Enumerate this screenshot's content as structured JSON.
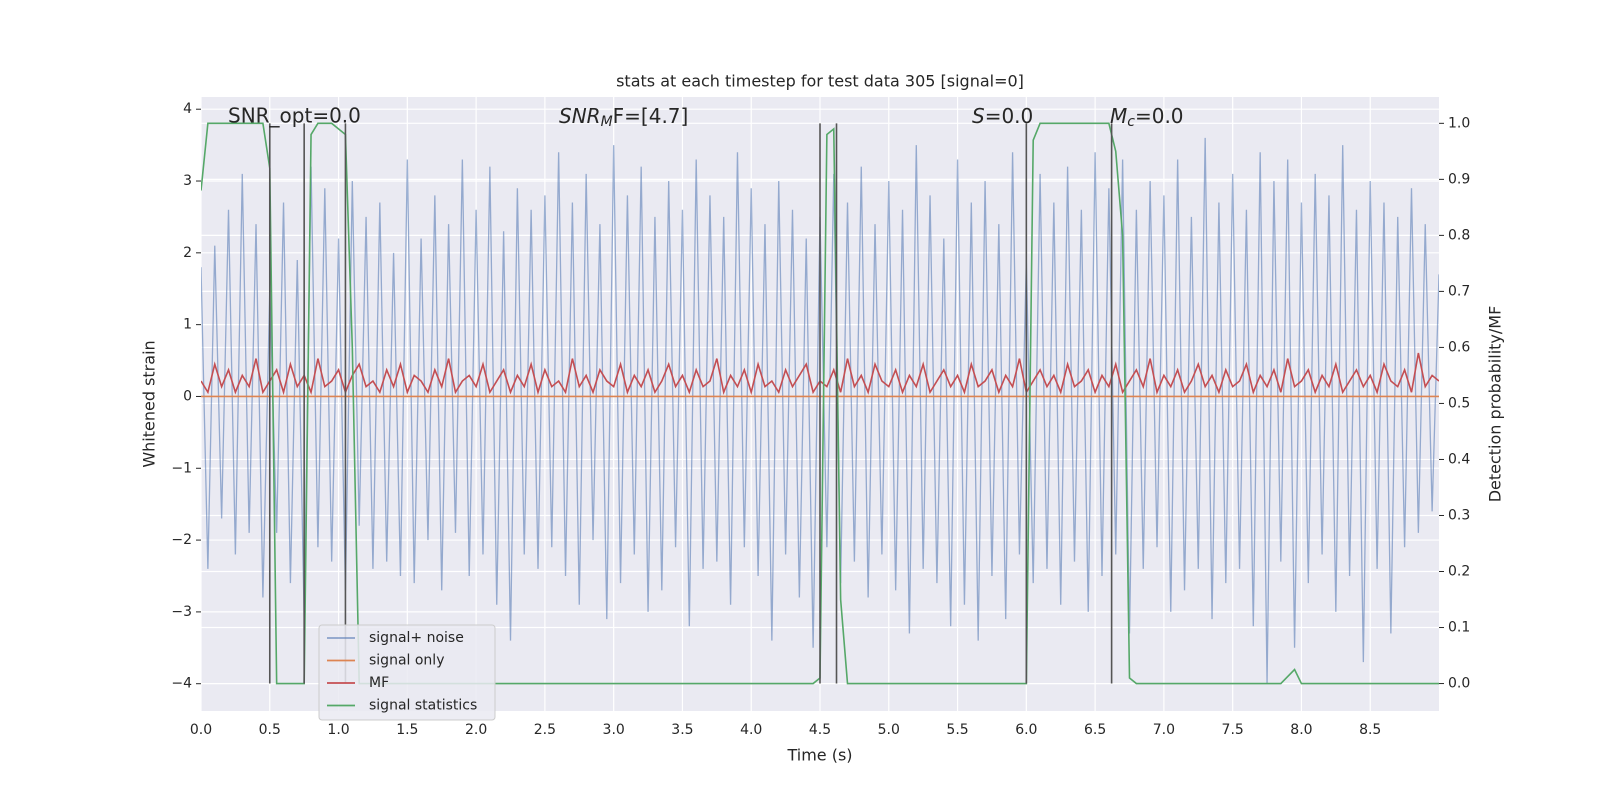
{
  "chart_data": {
    "type": "line",
    "title": "stats at each timestep for test data 305 [signal=0]",
    "xlabel": "Time (s)",
    "ylabel": "Whitened strain",
    "y2label": "Detection probability/MF",
    "annotations": [
      "SNR_opt=0.0",
      {
        "base": "SNR",
        "sub": "M",
        "tail": "F=[4.7]"
      },
      {
        "base": "S",
        "tail": "=0.0"
      },
      {
        "base": "M",
        "sub": "c",
        "tail": "=0.0"
      }
    ],
    "xlim": [
      0,
      9.0
    ],
    "ylim": [
      -4.38,
      4.17
    ],
    "y2lim": [
      -0.049,
      1.047
    ],
    "xticks": [
      {
        "value": 0,
        "label": "0.0"
      },
      0.5,
      {
        "value": 1,
        "label": "1.0"
      },
      1.5,
      {
        "value": 2,
        "label": "2.0"
      },
      2.5,
      {
        "value": 3,
        "label": "3.0"
      },
      3.5,
      {
        "value": 4,
        "label": "4.0"
      },
      4.5,
      {
        "value": 5,
        "label": "5.0"
      },
      5.5,
      {
        "value": 6,
        "label": "6.0"
      },
      6.5,
      {
        "value": 7,
        "label": "7.0"
      },
      7.5,
      {
        "value": 8,
        "label": "8.0"
      },
      8.5
    ],
    "yticks": [
      {
        "value": -4,
        "label": "−4"
      },
      {
        "value": -3,
        "label": "−3"
      },
      {
        "value": -2,
        "label": "−2"
      },
      {
        "value": -1,
        "label": "−1"
      },
      0,
      1,
      2,
      3,
      4
    ],
    "y2ticks": [
      {
        "value": 0,
        "label": "0.0"
      },
      0.1,
      0.2,
      0.3,
      0.4,
      0.5,
      0.6,
      0.7,
      0.8,
      0.9,
      {
        "value": 1,
        "label": "1.0"
      }
    ],
    "grid": true,
    "legend": "lower left",
    "x": [
      0,
      0.05,
      0.1,
      0.15,
      0.2,
      0.25,
      0.3,
      0.35,
      0.4,
      0.45,
      0.5,
      0.55,
      0.6,
      0.65,
      0.7,
      0.75,
      0.8,
      0.85,
      0.9,
      0.95,
      1,
      1.05,
      1.1,
      1.15,
      1.2,
      1.25,
      1.3,
      1.35,
      1.4,
      1.45,
      1.5,
      1.55,
      1.6,
      1.65,
      1.7,
      1.75,
      1.8,
      1.85,
      1.9,
      1.95,
      2,
      2.05,
      2.1,
      2.15,
      2.2,
      2.25,
      2.3,
      2.35,
      2.4,
      2.45,
      2.5,
      2.55,
      2.6,
      2.65,
      2.7,
      2.75,
      2.8,
      2.85,
      2.9,
      2.95,
      3,
      3.05,
      3.1,
      3.15,
      3.2,
      3.25,
      3.3,
      3.35,
      3.4,
      3.45,
      3.5,
      3.55,
      3.6,
      3.65,
      3.7,
      3.75,
      3.8,
      3.85,
      3.9,
      3.95,
      4,
      4.05,
      4.1,
      4.15,
      4.2,
      4.25,
      4.3,
      4.35,
      4.4,
      4.45,
      4.5,
      4.55,
      4.6,
      4.65,
      4.7,
      4.75,
      4.8,
      4.85,
      4.9,
      4.95,
      5,
      5.05,
      5.1,
      5.15,
      5.2,
      5.25,
      5.3,
      5.35,
      5.4,
      5.45,
      5.5,
      5.55,
      5.6,
      5.65,
      5.7,
      5.75,
      5.8,
      5.85,
      5.9,
      5.95,
      6,
      6.05,
      6.1,
      6.15,
      6.2,
      6.25,
      6.3,
      6.35,
      6.4,
      6.45,
      6.5,
      6.55,
      6.6,
      6.65,
      6.7,
      6.75,
      6.8,
      6.85,
      6.9,
      6.95,
      7,
      7.05,
      7.1,
      7.15,
      7.2,
      7.25,
      7.3,
      7.35,
      7.4,
      7.45,
      7.5,
      7.55,
      7.6,
      7.65,
      7.7,
      7.75,
      7.8,
      7.85,
      7.9,
      7.95,
      8,
      8.05,
      8.1,
      8.15,
      8.2,
      8.25,
      8.3,
      8.35,
      8.4,
      8.45,
      8.5,
      8.55,
      8.6,
      8.65,
      8.7,
      8.75,
      8.8,
      8.85,
      8.9,
      8.95,
      9.0
    ],
    "series": [
      {
        "name": "signal+ noise",
        "color": "#4c72b0",
        "axis": "y",
        "values": [
          1.8,
          -2.4,
          2.1,
          -1.7,
          2.6,
          -2.2,
          3.1,
          -1.9,
          2.4,
          -2.8,
          1.5,
          -1.9,
          2.7,
          -2.6,
          1.9,
          -3.1,
          3.2,
          -2.1,
          2.9,
          -2.3,
          2.2,
          -2.7,
          3.0,
          -1.8,
          2.5,
          -2.4,
          2.7,
          -2.3,
          2.0,
          -2.5,
          3.3,
          -2.6,
          2.2,
          -2.0,
          2.8,
          -2.7,
          2.4,
          -1.9,
          3.3,
          -2.5,
          2.6,
          -2.2,
          3.2,
          -2.9,
          2.3,
          -3.4,
          2.9,
          -2.2,
          2.6,
          -2.4,
          2.8,
          -2.1,
          3.4,
          -2.5,
          2.7,
          -2.9,
          3.1,
          -2.0,
          2.4,
          -3.1,
          3.5,
          -2.6,
          2.8,
          -2.2,
          3.2,
          -3.0,
          2.5,
          -2.7,
          3.0,
          -2.1,
          2.6,
          -3.2,
          3.3,
          -2.4,
          2.8,
          -2.3,
          2.5,
          -2.9,
          3.4,
          -2.1,
          2.9,
          -2.5,
          2.4,
          -3.4,
          3.0,
          -2.2,
          2.6,
          -2.8,
          2.2,
          -3.5,
          2.5,
          -2.1,
          3.1,
          -2.6,
          2.7,
          -2.3,
          3.2,
          -2.8,
          2.4,
          -2.2,
          3.0,
          -2.7,
          2.6,
          -3.3,
          3.5,
          -2.4,
          2.8,
          -2.6,
          2.2,
          -3.2,
          3.3,
          -2.9,
          2.7,
          -3.4,
          3.0,
          -2.5,
          2.4,
          -3.1,
          3.4,
          -2.2,
          1.9,
          -2.6,
          3.1,
          -2.4,
          2.7,
          -2.9,
          3.2,
          -2.3,
          2.6,
          -3.0,
          3.4,
          -2.5,
          2.9,
          -2.2,
          3.3,
          -3.3,
          2.6,
          -2.4,
          3.0,
          -2.1,
          2.8,
          -3.0,
          3.3,
          -2.7,
          2.5,
          -2.4,
          3.6,
          -3.1,
          2.7,
          -2.6,
          3.1,
          -2.4,
          2.6,
          -3.2,
          3.4,
          -4.0,
          3.0,
          -2.3,
          3.3,
          -3.5,
          2.7,
          -2.6,
          3.1,
          -2.2,
          2.8,
          -3.0,
          3.5,
          -2.5,
          2.6,
          -3.7,
          3.0,
          -2.4,
          2.7,
          -3.3,
          2.5,
          -2.1,
          2.9,
          -1.9,
          2.4,
          -1.6,
          1.7
        ]
      },
      {
        "name": "signal only",
        "color": "#dd8452",
        "axis": "y",
        "x": [
          0,
          9.0
        ],
        "values": [
          0,
          0
        ]
      },
      {
        "name": "MF",
        "color": "#c44e52",
        "axis": "y2",
        "values": [
          0.54,
          0.52,
          0.57,
          0.53,
          0.56,
          0.52,
          0.55,
          0.53,
          0.58,
          0.52,
          0.54,
          0.56,
          0.52,
          0.57,
          0.53,
          0.55,
          0.52,
          0.58,
          0.53,
          0.54,
          0.56,
          0.52,
          0.55,
          0.57,
          0.53,
          0.54,
          0.52,
          0.56,
          0.53,
          0.57,
          0.52,
          0.55,
          0.54,
          0.52,
          0.56,
          0.53,
          0.58,
          0.52,
          0.54,
          0.55,
          0.53,
          0.57,
          0.52,
          0.54,
          0.56,
          0.52,
          0.55,
          0.53,
          0.57,
          0.52,
          0.56,
          0.53,
          0.54,
          0.52,
          0.58,
          0.53,
          0.55,
          0.52,
          0.56,
          0.54,
          0.53,
          0.57,
          0.52,
          0.55,
          0.53,
          0.56,
          0.52,
          0.54,
          0.57,
          0.53,
          0.55,
          0.52,
          0.56,
          0.53,
          0.54,
          0.58,
          0.52,
          0.55,
          0.53,
          0.56,
          0.52,
          0.57,
          0.53,
          0.54,
          0.52,
          0.56,
          0.53,
          0.55,
          0.57,
          0.52,
          0.54,
          0.53,
          0.56,
          0.52,
          0.58,
          0.53,
          0.55,
          0.52,
          0.57,
          0.54,
          0.53,
          0.56,
          0.52,
          0.55,
          0.53,
          0.57,
          0.52,
          0.54,
          0.56,
          0.53,
          0.55,
          0.52,
          0.57,
          0.53,
          0.54,
          0.56,
          0.52,
          0.55,
          0.53,
          0.58,
          0.52,
          0.54,
          0.56,
          0.53,
          0.55,
          0.52,
          0.57,
          0.53,
          0.54,
          0.56,
          0.52,
          0.55,
          0.53,
          0.57,
          0.52,
          0.54,
          0.56,
          0.53,
          0.58,
          0.52,
          0.55,
          0.53,
          0.56,
          0.52,
          0.54,
          0.57,
          0.53,
          0.55,
          0.52,
          0.56,
          0.53,
          0.54,
          0.57,
          0.52,
          0.55,
          0.53,
          0.56,
          0.52,
          0.58,
          0.53,
          0.54,
          0.56,
          0.52,
          0.55,
          0.53,
          0.57,
          0.52,
          0.54,
          0.56,
          0.53,
          0.55,
          0.52,
          0.57,
          0.54,
          0.53,
          0.56,
          0.52,
          0.59,
          0.53,
          0.55,
          0.54
        ]
      },
      {
        "name": "signal statistics",
        "color": "#55a868",
        "axis": "y2",
        "x": [
          0,
          0.05,
          0.45,
          0.5,
          0.55,
          0.7,
          0.75,
          0.8,
          0.85,
          0.95,
          1.05,
          1.1,
          1.15,
          4.45,
          4.5,
          4.55,
          4.6,
          4.65,
          4.7,
          6.0,
          6.05,
          6.1,
          6.6,
          6.65,
          6.7,
          6.75,
          6.8,
          7.85,
          7.95,
          8.0,
          9.0
        ],
        "values": [
          0.88,
          1.0,
          1.0,
          0.92,
          0.0,
          0.0,
          0.0,
          0.98,
          1.0,
          1.0,
          0.98,
          0.6,
          0.0,
          0.0,
          0.01,
          0.98,
          0.99,
          0.15,
          0.0,
          0.0,
          0.97,
          1.0,
          1.0,
          0.95,
          0.8,
          0.01,
          0.0,
          0.0,
          0.025,
          0.0,
          0.0
        ]
      }
    ],
    "vlines": {
      "x": [
        0.5,
        0.75,
        1.05,
        4.5,
        4.62,
        6.0,
        6.62
      ],
      "y2": [
        0,
        1.0
      ],
      "color": "#555555"
    }
  }
}
